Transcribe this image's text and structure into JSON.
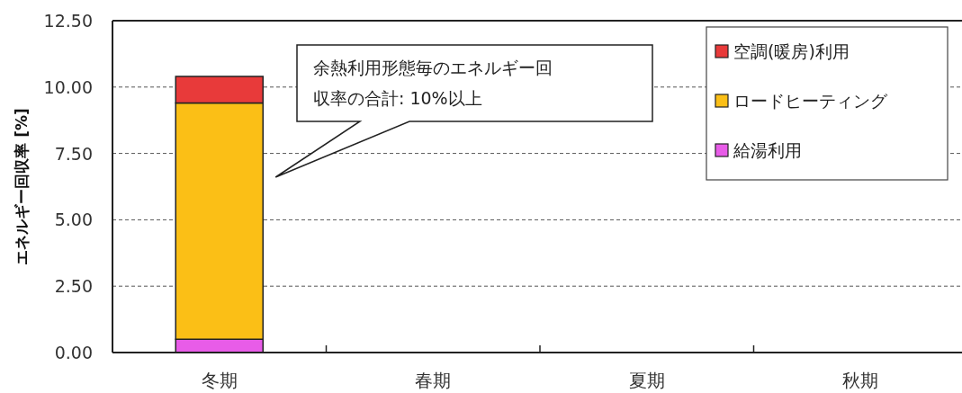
{
  "chart_data": {
    "type": "bar",
    "stacked": true,
    "ylabel": "エネルギー回収率 [%]",
    "categories": [
      "冬期",
      "春期",
      "夏期",
      "秋期"
    ],
    "series": [
      {
        "name": "給湯利用",
        "color": "#e85ce8",
        "values": [
          0.5,
          0,
          0,
          0
        ]
      },
      {
        "name": "ロードヒーティング",
        "color": "#fbbf16",
        "values": [
          8.9,
          0,
          0,
          0
        ]
      },
      {
        "name": "空調(暖房)利用",
        "color": "#e83a3a",
        "values": [
          1.0,
          0,
          0,
          0
        ]
      }
    ],
    "ylim": [
      0,
      12.5
    ],
    "yticks": [
      {
        "value": 0,
        "label": "0.00"
      },
      {
        "value": 2.5,
        "label": "2.50"
      },
      {
        "value": 5,
        "label": "5.00"
      },
      {
        "value": 7.5,
        "label": "7.50"
      },
      {
        "value": 10,
        "label": "10.00"
      },
      {
        "value": 12.5,
        "label": "12.50"
      }
    ],
    "grid": "y",
    "legend": "top right",
    "annotations": [
      "余熱利用形態毎のエネルギー回収率の合計: 10%以上"
    ]
  }
}
